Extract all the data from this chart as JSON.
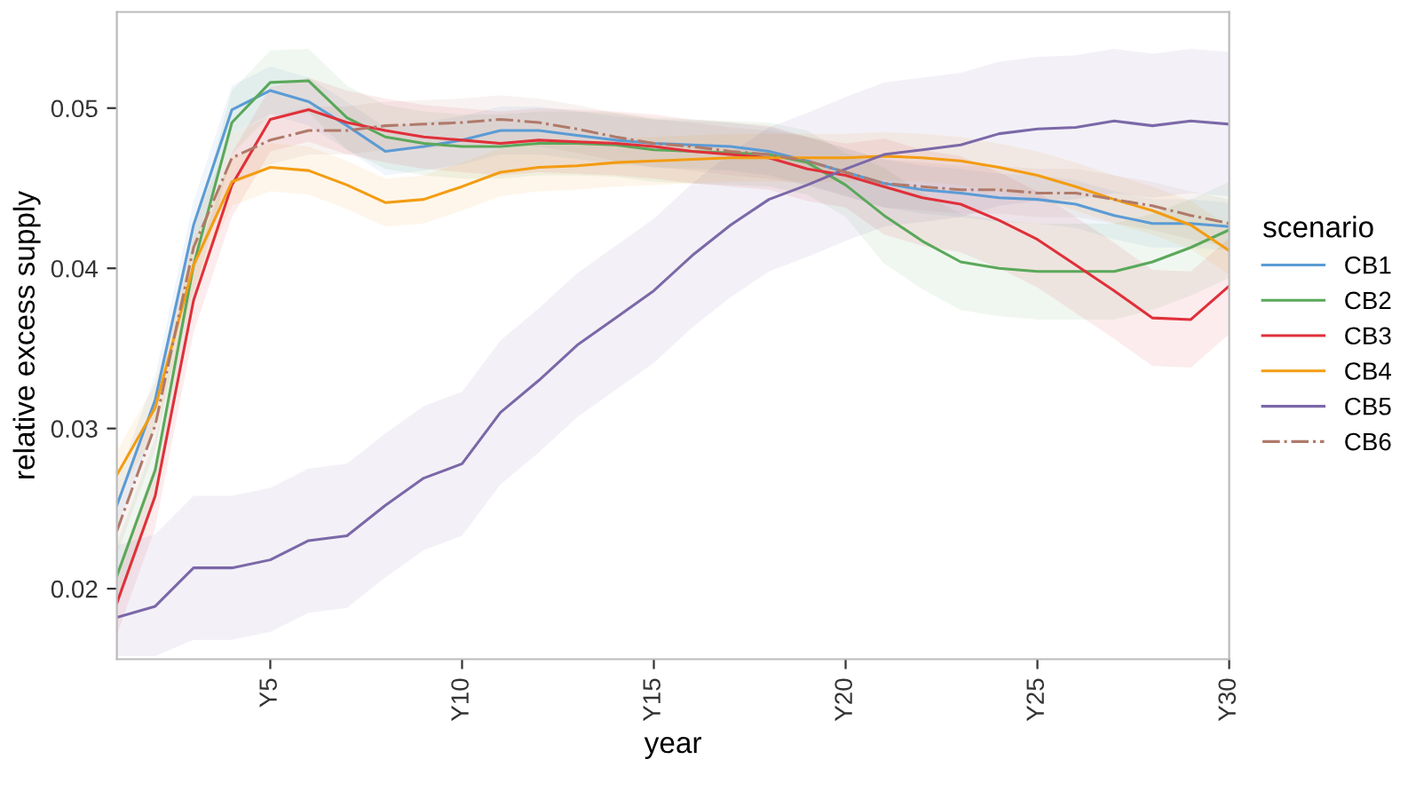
{
  "chart_data": {
    "type": "line",
    "xlabel": "year",
    "ylabel": "relative excess supply",
    "legend_title": "scenario",
    "legend": "right",
    "grid": false,
    "categories": [
      null,
      null,
      null,
      null,
      "Y5",
      null,
      null,
      null,
      null,
      "Y10",
      null,
      null,
      null,
      null,
      "Y15",
      null,
      null,
      null,
      null,
      "Y20",
      null,
      null,
      null,
      null,
      "Y25",
      null,
      null,
      null,
      null,
      "Y30"
    ],
    "ylim": [
      0.0156,
      0.056
    ],
    "yticks": [
      {
        "value": 0.02,
        "label": "0.02"
      },
      {
        "value": 0.03,
        "label": "0.03"
      },
      {
        "value": 0.04,
        "label": "0.04"
      },
      {
        "value": 0.05,
        "label": "0.05"
      }
    ],
    "series": [
      {
        "name": "CB1",
        "color": "#5b9bd5",
        "line_style": "solid",
        "values": [
          0.0252,
          0.0318,
          0.0427,
          0.0499,
          0.0511,
          0.0504,
          0.0489,
          0.0473,
          0.0476,
          0.048,
          0.0486,
          0.0486,
          0.0483,
          0.048,
          0.0478,
          0.0477,
          0.0476,
          0.0473,
          0.0467,
          0.046,
          0.0453,
          0.0449,
          0.0447,
          0.0444,
          0.0443,
          0.044,
          0.0433,
          0.0428,
          0.0428,
          0.0426
        ],
        "lower": [
          0.0237,
          0.0303,
          0.0412,
          0.0484,
          0.0496,
          0.0489,
          0.0474,
          0.0458,
          0.0461,
          0.0465,
          0.0471,
          0.0471,
          0.0468,
          0.0465,
          0.0463,
          0.0462,
          0.0461,
          0.0458,
          0.0452,
          0.0445,
          0.0438,
          0.0434,
          0.0432,
          0.0429,
          0.0428,
          0.0425,
          0.0418,
          0.0413,
          0.0413,
          0.0411
        ],
        "upper": [
          0.0267,
          0.0333,
          0.0442,
          0.0514,
          0.0526,
          0.0519,
          0.0504,
          0.0488,
          0.0491,
          0.0495,
          0.0501,
          0.0501,
          0.0498,
          0.0495,
          0.0493,
          0.0492,
          0.0491,
          0.0488,
          0.0482,
          0.0475,
          0.0468,
          0.0464,
          0.0462,
          0.0459,
          0.0458,
          0.0455,
          0.0448,
          0.0443,
          0.0443,
          0.0441
        ]
      },
      {
        "name": "CB2",
        "color": "#5aa85a",
        "line_style": "solid",
        "values": [
          0.0208,
          0.0274,
          0.0402,
          0.0491,
          0.0516,
          0.0517,
          0.0494,
          0.0482,
          0.0478,
          0.0476,
          0.0476,
          0.0478,
          0.0478,
          0.0477,
          0.0474,
          0.0473,
          0.0472,
          0.0471,
          0.0466,
          0.0452,
          0.0433,
          0.0417,
          0.0404,
          0.04,
          0.0398,
          0.0398,
          0.0398,
          0.0404,
          0.0413,
          0.0424
        ],
        "lower": [
          0.0188,
          0.0254,
          0.0382,
          0.0471,
          0.0496,
          0.0497,
          0.0474,
          0.0462,
          0.0458,
          0.0456,
          0.0456,
          0.0458,
          0.0458,
          0.0457,
          0.0454,
          0.0453,
          0.0452,
          0.0451,
          0.0446,
          0.0432,
          0.0403,
          0.0387,
          0.0374,
          0.037,
          0.0368,
          0.0368,
          0.0368,
          0.0374,
          0.0383,
          0.0394
        ],
        "upper": [
          0.0228,
          0.0294,
          0.0422,
          0.0511,
          0.0536,
          0.0537,
          0.0514,
          0.0502,
          0.0498,
          0.0496,
          0.0496,
          0.0498,
          0.0498,
          0.0497,
          0.0494,
          0.0493,
          0.0492,
          0.0491,
          0.0486,
          0.0472,
          0.0463,
          0.0447,
          0.0434,
          0.043,
          0.0428,
          0.0428,
          0.0428,
          0.0434,
          0.0443,
          0.0454
        ]
      },
      {
        "name": "CB3",
        "color": "#e0303a",
        "line_style": "solid",
        "values": [
          0.0191,
          0.0258,
          0.038,
          0.0452,
          0.0493,
          0.0499,
          0.0491,
          0.0486,
          0.0482,
          0.048,
          0.0478,
          0.048,
          0.0479,
          0.0478,
          0.0476,
          0.0473,
          0.0471,
          0.0469,
          0.0462,
          0.0458,
          0.0451,
          0.0444,
          0.044,
          0.043,
          0.0418,
          0.0402,
          0.0386,
          0.0369,
          0.0368,
          0.0389
        ],
        "lower": [
          0.0171,
          0.0238,
          0.036,
          0.0432,
          0.0473,
          0.0479,
          0.0471,
          0.0466,
          0.0462,
          0.046,
          0.0458,
          0.046,
          0.0459,
          0.0458,
          0.0456,
          0.0453,
          0.0451,
          0.0449,
          0.0442,
          0.0438,
          0.0421,
          0.0414,
          0.041,
          0.04,
          0.0388,
          0.0372,
          0.0356,
          0.0339,
          0.0338,
          0.0359
        ],
        "upper": [
          0.0211,
          0.0278,
          0.04,
          0.0472,
          0.0513,
          0.0519,
          0.0511,
          0.0506,
          0.0502,
          0.05,
          0.0498,
          0.05,
          0.0499,
          0.0498,
          0.0496,
          0.0493,
          0.0491,
          0.0489,
          0.0482,
          0.0478,
          0.0481,
          0.0474,
          0.047,
          0.046,
          0.0448,
          0.0432,
          0.0416,
          0.0399,
          0.0398,
          0.0419
        ]
      },
      {
        "name": "CB4",
        "color": "#f39c12",
        "line_style": "solid",
        "values": [
          0.0271,
          0.0313,
          0.0402,
          0.0454,
          0.0463,
          0.0461,
          0.0452,
          0.0441,
          0.0443,
          0.0451,
          0.046,
          0.0463,
          0.0464,
          0.0466,
          0.0467,
          0.0468,
          0.0469,
          0.0469,
          0.0469,
          0.0469,
          0.047,
          0.0469,
          0.0467,
          0.0463,
          0.0458,
          0.0451,
          0.0443,
          0.0436,
          0.0427,
          0.0411
        ],
        "lower": [
          0.0256,
          0.0298,
          0.0387,
          0.0439,
          0.0448,
          0.0446,
          0.0437,
          0.0426,
          0.0428,
          0.0436,
          0.0445,
          0.0448,
          0.0449,
          0.0451,
          0.0452,
          0.0453,
          0.0454,
          0.0454,
          0.0454,
          0.0454,
          0.0455,
          0.0454,
          0.0452,
          0.0448,
          0.0443,
          0.0436,
          0.0428,
          0.0421,
          0.0412,
          0.0396
        ],
        "upper": [
          0.0286,
          0.0328,
          0.0417,
          0.0469,
          0.0478,
          0.0476,
          0.0467,
          0.0456,
          0.0458,
          0.0466,
          0.0475,
          0.0478,
          0.0479,
          0.0481,
          0.0482,
          0.0483,
          0.0484,
          0.0484,
          0.0484,
          0.0484,
          0.0485,
          0.0484,
          0.0482,
          0.0478,
          0.0473,
          0.0466,
          0.0458,
          0.0451,
          0.0442,
          0.0426
        ]
      },
      {
        "name": "CB5",
        "color": "#7b68a8",
        "line_style": "solid",
        "values": [
          0.0182,
          0.0189,
          0.0213,
          0.0213,
          0.0218,
          0.023,
          0.0233,
          0.0252,
          0.0269,
          0.0278,
          0.031,
          0.033,
          0.0352,
          0.0369,
          0.0386,
          0.0408,
          0.0427,
          0.0443,
          0.0452,
          0.0462,
          0.0471,
          0.0474,
          0.0477,
          0.0484,
          0.0487,
          0.0488,
          0.0492,
          0.0489,
          0.0492,
          0.049
        ],
        "lower": [
          0.0158,
          0.0158,
          0.0168,
          0.0168,
          0.0173,
          0.0185,
          0.0188,
          0.0207,
          0.0224,
          0.0233,
          0.0265,
          0.0285,
          0.0307,
          0.0324,
          0.0341,
          0.0363,
          0.0382,
          0.0398,
          0.0407,
          0.0417,
          0.0426,
          0.0429,
          0.0432,
          0.0439,
          0.0442,
          0.0443,
          0.0447,
          0.0444,
          0.0447,
          0.0445
        ],
        "upper": [
          0.0227,
          0.0234,
          0.0258,
          0.0258,
          0.0263,
          0.0275,
          0.0278,
          0.0297,
          0.0314,
          0.0323,
          0.0355,
          0.0375,
          0.0397,
          0.0414,
          0.0431,
          0.0453,
          0.0472,
          0.0488,
          0.0497,
          0.0507,
          0.0516,
          0.0519,
          0.0522,
          0.0529,
          0.0532,
          0.0533,
          0.0537,
          0.0534,
          0.0537,
          0.0535
        ]
      },
      {
        "name": "CB6",
        "color": "#b07a6a",
        "line_style": "dashdot",
        "values": [
          0.0236,
          0.0302,
          0.0413,
          0.0469,
          0.048,
          0.0486,
          0.0486,
          0.0489,
          0.049,
          0.0491,
          0.0493,
          0.0491,
          0.0487,
          0.0482,
          0.0478,
          0.0476,
          0.0473,
          0.0471,
          0.0467,
          0.046,
          0.0453,
          0.0451,
          0.0449,
          0.0449,
          0.0447,
          0.0447,
          0.0443,
          0.0439,
          0.0433,
          0.0428
        ],
        "lower": [
          0.0221,
          0.0287,
          0.0398,
          0.0454,
          0.0465,
          0.0471,
          0.0471,
          0.0474,
          0.0475,
          0.0476,
          0.0478,
          0.0476,
          0.0472,
          0.0467,
          0.0463,
          0.0461,
          0.0458,
          0.0456,
          0.0452,
          0.0445,
          0.0438,
          0.0436,
          0.0434,
          0.0434,
          0.0432,
          0.0432,
          0.0428,
          0.0424,
          0.0418,
          0.0413
        ],
        "upper": [
          0.0251,
          0.0317,
          0.0428,
          0.0484,
          0.0495,
          0.0501,
          0.0501,
          0.0504,
          0.0505,
          0.0506,
          0.0508,
          0.0506,
          0.0502,
          0.0497,
          0.0493,
          0.0491,
          0.0488,
          0.0486,
          0.0482,
          0.0475,
          0.0468,
          0.0466,
          0.0464,
          0.0464,
          0.0462,
          0.0462,
          0.0458,
          0.0454,
          0.0448,
          0.0443
        ]
      }
    ]
  }
}
